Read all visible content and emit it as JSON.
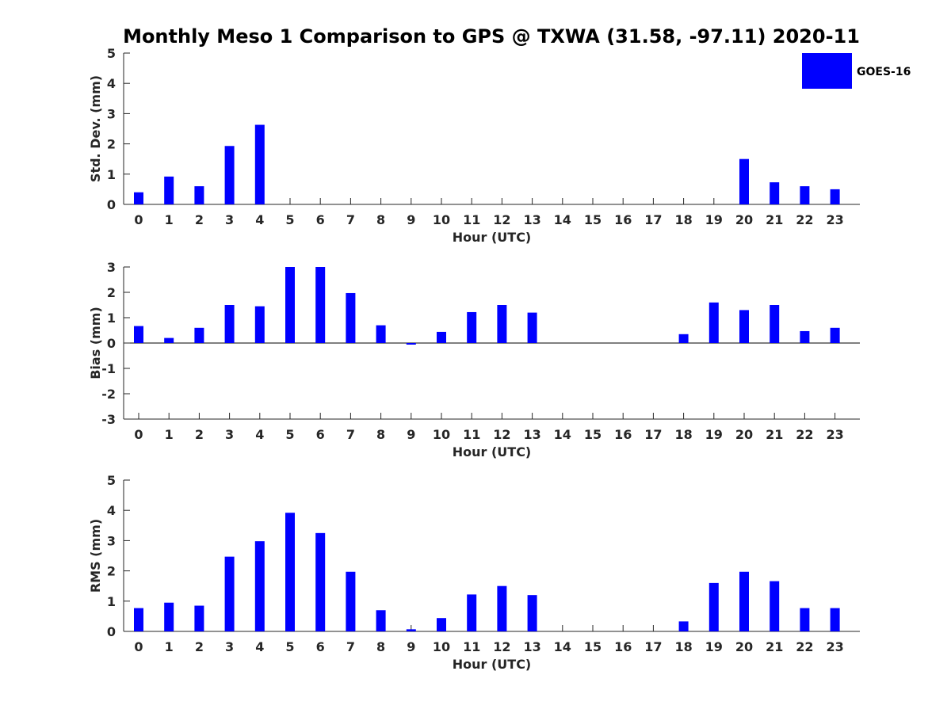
{
  "title": "Monthly Meso 1 Comparison to GPS @ TXWA (31.58, -97.11) 2020-11",
  "legend": {
    "label": "GOES-16",
    "color": "#0000ff",
    "position": "top-right"
  },
  "chart_data": [
    {
      "type": "bar",
      "name": "std",
      "xlabel": "Hour (UTC)",
      "ylabel": "Std. Dev. (mm)",
      "ylim": [
        0,
        5
      ],
      "yticks": [
        0,
        1,
        2,
        3,
        4,
        5
      ],
      "categories": [
        "0",
        "1",
        "2",
        "3",
        "4",
        "5",
        "6",
        "7",
        "8",
        "9",
        "10",
        "11",
        "12",
        "13",
        "14",
        "15",
        "16",
        "17",
        "18",
        "19",
        "20",
        "21",
        "22",
        "23"
      ],
      "series": [
        {
          "name": "GOES-16",
          "values": [
            0.4,
            0.92,
            0.6,
            1.93,
            2.63,
            null,
            null,
            null,
            null,
            null,
            null,
            null,
            null,
            null,
            null,
            null,
            null,
            null,
            null,
            null,
            1.5,
            0.73,
            0.6,
            0.5
          ]
        }
      ]
    },
    {
      "type": "bar",
      "name": "bias",
      "xlabel": "Hour (UTC)",
      "ylabel": "Bias (mm)",
      "ylim": [
        -3,
        3
      ],
      "yticks": [
        -3,
        -2,
        -1,
        0,
        1,
        2,
        3
      ],
      "categories": [
        "0",
        "1",
        "2",
        "3",
        "4",
        "5",
        "6",
        "7",
        "8",
        "9",
        "10",
        "11",
        "12",
        "13",
        "14",
        "15",
        "16",
        "17",
        "18",
        "19",
        "20",
        "21",
        "22",
        "23"
      ],
      "series": [
        {
          "name": "GOES-16",
          "values": [
            0.67,
            0.2,
            0.6,
            1.5,
            1.45,
            3.0,
            3.0,
            1.97,
            0.7,
            -0.05,
            0.44,
            1.22,
            1.5,
            1.2,
            null,
            null,
            null,
            null,
            0.35,
            1.6,
            1.3,
            1.5,
            0.47,
            0.6
          ]
        }
      ]
    },
    {
      "type": "bar",
      "name": "rms",
      "xlabel": "Hour (UTC)",
      "ylabel": "RMS (mm)",
      "ylim": [
        0,
        5
      ],
      "yticks": [
        0,
        1,
        2,
        3,
        4,
        5
      ],
      "categories": [
        "0",
        "1",
        "2",
        "3",
        "4",
        "5",
        "6",
        "7",
        "8",
        "9",
        "10",
        "11",
        "12",
        "13",
        "14",
        "15",
        "16",
        "17",
        "18",
        "19",
        "20",
        "21",
        "22",
        "23"
      ],
      "series": [
        {
          "name": "GOES-16",
          "values": [
            0.77,
            0.95,
            0.85,
            2.47,
            2.98,
            3.92,
            3.25,
            1.97,
            0.7,
            0.07,
            0.44,
            1.22,
            1.5,
            1.2,
            null,
            null,
            null,
            null,
            0.33,
            1.6,
            1.97,
            1.66,
            0.77,
            0.77
          ]
        }
      ]
    }
  ]
}
